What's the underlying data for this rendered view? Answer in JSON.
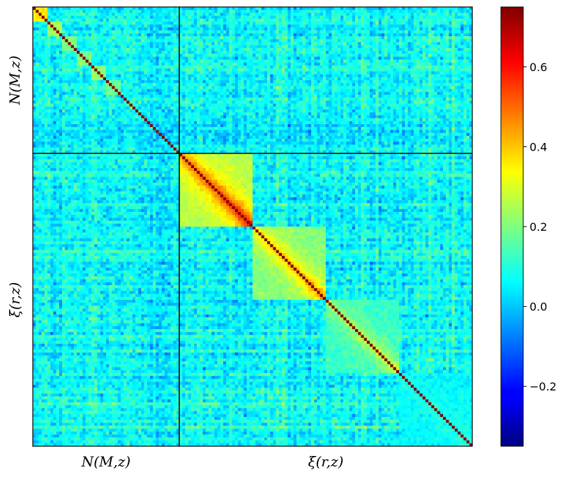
{
  "chart_data": {
    "type": "heatmap",
    "title": "",
    "matrix_size": 150,
    "blocks": [
      {
        "label": "N(M,z)",
        "size": 50
      },
      {
        "label": "ξ(r,z)",
        "size": 100
      }
    ],
    "x_block_labels": [
      "N(M,z)",
      "ξ(r,z)"
    ],
    "y_block_labels": [
      "N(M,z)",
      "ξ(r,z)"
    ],
    "diagonal_value": 0.75,
    "background_mean": 0.06,
    "background_noise": 0.06,
    "sub_blocks": [
      {
        "start": 0,
        "end": 5,
        "value": 0.36
      },
      {
        "start": 5,
        "end": 10,
        "value": 0.24
      },
      {
        "start": 10,
        "end": 15,
        "value": 0.2
      },
      {
        "start": 15,
        "end": 20,
        "value": 0.2
      },
      {
        "start": 20,
        "end": 25,
        "value": 0.22
      },
      {
        "start": 25,
        "end": 30,
        "value": 0.18
      },
      {
        "start": 50,
        "end": 75,
        "value": 0.26,
        "peak": 0.62
      },
      {
        "start": 75,
        "end": 100,
        "value": 0.2,
        "peak": 0.48
      },
      {
        "start": 100,
        "end": 125,
        "value": 0.12,
        "peak": 0.3
      },
      {
        "start": 125,
        "end": 150,
        "value": 0.06,
        "peak": 0.1
      }
    ],
    "colorbar": {
      "colormap": "jet",
      "range": [
        -0.35,
        0.75
      ],
      "ticks": [
        -0.2,
        0.0,
        0.2,
        0.4,
        0.6
      ],
      "tick_labels": [
        "−0.2",
        "0.0",
        "0.2",
        "0.4",
        "0.6"
      ]
    }
  }
}
